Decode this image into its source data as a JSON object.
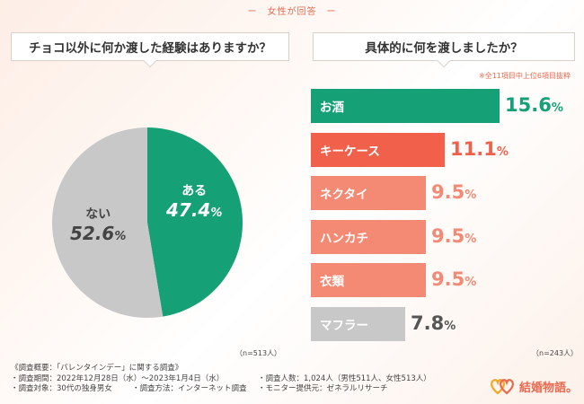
{
  "header": {
    "caption": "ー　女性が回答　ー"
  },
  "left_question": "チョコ以外に何か渡した経験はありますか？",
  "right_question": "具体的に何を渡しましたか？",
  "note": "※全11項目中上位6項目抜粋",
  "chart_data": [
    {
      "type": "pie",
      "question": "チョコ以外に何か渡した経験はありますか？",
      "slices": [
        {
          "label": "ある",
          "value": 47.4,
          "color": "#16a075"
        },
        {
          "label": "ない",
          "value": 52.6,
          "color": "#c8c8c8"
        }
      ],
      "sample": "（n=513人）"
    },
    {
      "type": "bar",
      "question": "具体的に何を渡しましたか？",
      "categories": [
        "お酒",
        "キーケース",
        "ネクタイ",
        "ハンカチ",
        "衣類",
        "マフラー"
      ],
      "values": [
        15.6,
        11.1,
        9.5,
        9.5,
        9.5,
        7.8
      ],
      "value_labels": [
        "15.6",
        "11.1",
        "9.5",
        "9.5",
        "9.5",
        "7.8"
      ],
      "unit": "%",
      "bar_colors": [
        "#16a075",
        "#f0604a",
        "#f48a74",
        "#f48a74",
        "#f48a74",
        "#c8c8c8"
      ],
      "value_colors": [
        "#16a075",
        "#f0604a",
        "#f48a74",
        "#f48a74",
        "#f48a74",
        "#555555"
      ],
      "sample": "（n=243人）"
    }
  ],
  "footer": {
    "title": "《調査概要：「バレンタインデー」に関する調査》",
    "period": "・調査期間：2022年12月28日（水）〜2023年1月4日（水）",
    "count": "・調査人数：1,024人（男性511人、女性513人）",
    "target": "・調査対象：30代の独身男女",
    "method": "・調査方法：インターネット調査",
    "provider": "・モニター提供元：ゼネラルリサーチ"
  },
  "logo": {
    "text": "結婚物語。",
    "icon": "double-heart-icon"
  }
}
